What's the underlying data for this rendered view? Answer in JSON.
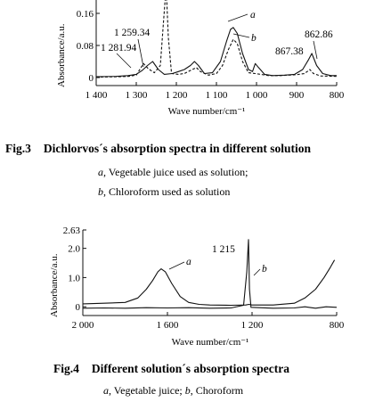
{
  "figures": [
    {
      "caption_num": "Fig.3",
      "caption_text": "Dichlorvos´s absorption spectra in different solution",
      "legend": [
        {
          "key": "a",
          "text": ", Vegetable juice used as solution;"
        },
        {
          "key": "b",
          "text": ", Chloroform used as solution"
        }
      ]
    },
    {
      "caption_num": "Fig.4",
      "caption_text": "Different solution´s absorption spectra",
      "legend_line": [
        {
          "key": "a",
          "text": ", Vegetable juice; "
        },
        {
          "key": "b",
          "text": ", Choroform"
        }
      ]
    }
  ],
  "chart_data": [
    {
      "type": "line",
      "xlabel": "Wave number/cm⁻¹",
      "ylabel": "Absorbance/a.u.",
      "xlim": [
        1400,
        800
      ],
      "ylim": [
        -0.02,
        0.18
      ],
      "x_ticks": [
        1400,
        1300,
        1200,
        1100,
        1000,
        900,
        800
      ],
      "x_tick_labels": [
        "1 400",
        "1 300",
        "1 200",
        "1 100",
        "1 000",
        "900",
        "800"
      ],
      "y_ticks": [
        0,
        0.08,
        0.16
      ],
      "y_tick_labels": [
        "0",
        "0.08",
        "0.16"
      ],
      "series": [
        {
          "name": "a",
          "color": "#111111",
          "dash": "",
          "points": [
            [
              1400,
              0.002
            ],
            [
              1350,
              0.003
            ],
            [
              1320,
              0.005
            ],
            [
              1300,
              0.008
            ],
            [
              1285,
              0.018
            ],
            [
              1272,
              0.03
            ],
            [
              1259,
              0.04
            ],
            [
              1245,
              0.02
            ],
            [
              1230,
              0.008
            ],
            [
              1210,
              0.01
            ],
            [
              1195,
              0.015
            ],
            [
              1180,
              0.02
            ],
            [
              1165,
              0.03
            ],
            [
              1155,
              0.04
            ],
            [
              1145,
              0.03
            ],
            [
              1130,
              0.01
            ],
            [
              1110,
              0.012
            ],
            [
              1090,
              0.04
            ],
            [
              1075,
              0.09
            ],
            [
              1065,
              0.12
            ],
            [
              1058,
              0.125
            ],
            [
              1048,
              0.11
            ],
            [
              1035,
              0.06
            ],
            [
              1020,
              0.02
            ],
            [
              1010,
              0.015
            ],
            [
              1003,
              0.035
            ],
            [
              995,
              0.025
            ],
            [
              980,
              0.008
            ],
            [
              960,
              0.005
            ],
            [
              930,
              0.006
            ],
            [
              905,
              0.008
            ],
            [
              885,
              0.02
            ],
            [
              870,
              0.045
            ],
            [
              862,
              0.06
            ],
            [
              850,
              0.03
            ],
            [
              835,
              0.01
            ],
            [
              815,
              0.005
            ],
            [
              800,
              0.005
            ]
          ]
        },
        {
          "name": "b",
          "color": "#111111",
          "dash": "3,2",
          "points": [
            [
              1400,
              0.001
            ],
            [
              1350,
              0.002
            ],
            [
              1320,
              0.003
            ],
            [
              1300,
              0.006
            ],
            [
              1282,
              0.035
            ],
            [
              1270,
              0.022
            ],
            [
              1255,
              0.012
            ],
            [
              1240,
              0.03
            ],
            [
              1232,
              0.14
            ],
            [
              1228,
              0.2
            ],
            [
              1224,
              0.2
            ],
            [
              1220,
              0.1
            ],
            [
              1212,
              0.01
            ],
            [
              1195,
              0.008
            ],
            [
              1180,
              0.01
            ],
            [
              1160,
              0.02
            ],
            [
              1150,
              0.025
            ],
            [
              1140,
              0.015
            ],
            [
              1120,
              0.006
            ],
            [
              1100,
              0.01
            ],
            [
              1085,
              0.03
            ],
            [
              1070,
              0.07
            ],
            [
              1058,
              0.095
            ],
            [
              1048,
              0.085
            ],
            [
              1035,
              0.04
            ],
            [
              1020,
              0.012
            ],
            [
              1003,
              0.01
            ],
            [
              990,
              0.008
            ],
            [
              970,
              0.005
            ],
            [
              940,
              0.005
            ],
            [
              900,
              0.007
            ],
            [
              880,
              0.01
            ],
            [
              867,
              0.02
            ],
            [
              858,
              0.01
            ],
            [
              840,
              0.004
            ],
            [
              800,
              0.003
            ]
          ]
        }
      ],
      "annotations": [
        {
          "text": "1 259.34"
        },
        {
          "text": "1 281.94"
        },
        {
          "text": "867.38"
        },
        {
          "text": "862.86"
        },
        {
          "text": "a",
          "italic": true
        },
        {
          "text": "b",
          "italic": true
        }
      ]
    },
    {
      "type": "line",
      "xlabel": "Wave number/cm⁻¹",
      "ylabel": "Absorbance/a.u.",
      "xlim": [
        2000,
        800
      ],
      "ylim": [
        -0.3,
        2.63
      ],
      "x_ticks": [
        2000,
        1600,
        1200,
        800
      ],
      "x_tick_labels": [
        "2 000",
        "1 600",
        "1 200",
        "800"
      ],
      "y_ticks": [
        0,
        1.0,
        2.0,
        2.63
      ],
      "y_tick_labels": [
        "0",
        "1.0",
        "2.0",
        "2.63"
      ],
      "series": [
        {
          "name": "a",
          "color": "#111111",
          "dash": "",
          "points": [
            [
              2000,
              0.1
            ],
            [
              1900,
              0.12
            ],
            [
              1800,
              0.15
            ],
            [
              1740,
              0.3
            ],
            [
              1700,
              0.6
            ],
            [
              1670,
              0.9
            ],
            [
              1645,
              1.2
            ],
            [
              1630,
              1.3
            ],
            [
              1610,
              1.2
            ],
            [
              1580,
              0.8
            ],
            [
              1540,
              0.35
            ],
            [
              1500,
              0.15
            ],
            [
              1450,
              0.08
            ],
            [
              1400,
              0.06
            ],
            [
              1300,
              0.05
            ],
            [
              1230,
              0.06
            ],
            [
              1215,
              0.08
            ],
            [
              1200,
              0.06
            ],
            [
              1100,
              0.06
            ],
            [
              1000,
              0.12
            ],
            [
              950,
              0.3
            ],
            [
              900,
              0.6
            ],
            [
              860,
              1.0
            ],
            [
              830,
              1.35
            ],
            [
              810,
              1.6
            ]
          ]
        },
        {
          "name": "b",
          "color": "#111111",
          "dash": "",
          "points": [
            [
              2000,
              -0.05
            ],
            [
              1900,
              -0.04
            ],
            [
              1800,
              -0.05
            ],
            [
              1700,
              -0.03
            ],
            [
              1600,
              -0.04
            ],
            [
              1500,
              -0.03
            ],
            [
              1400,
              -0.05
            ],
            [
              1300,
              -0.04
            ],
            [
              1240,
              0.05
            ],
            [
              1225,
              1.2
            ],
            [
              1217,
              2.3
            ],
            [
              1212,
              0.6
            ],
            [
              1205,
              -0.02
            ],
            [
              1100,
              -0.05
            ],
            [
              1000,
              -0.04
            ],
            [
              950,
              0.0
            ],
            [
              920,
              -0.03
            ],
            [
              900,
              -0.05
            ],
            [
              850,
              0.0
            ],
            [
              800,
              -0.02
            ]
          ]
        }
      ],
      "annotations": [
        {
          "text": "1 215"
        },
        {
          "text": "a",
          "italic": true
        },
        {
          "text": "b",
          "italic": true
        }
      ]
    }
  ]
}
